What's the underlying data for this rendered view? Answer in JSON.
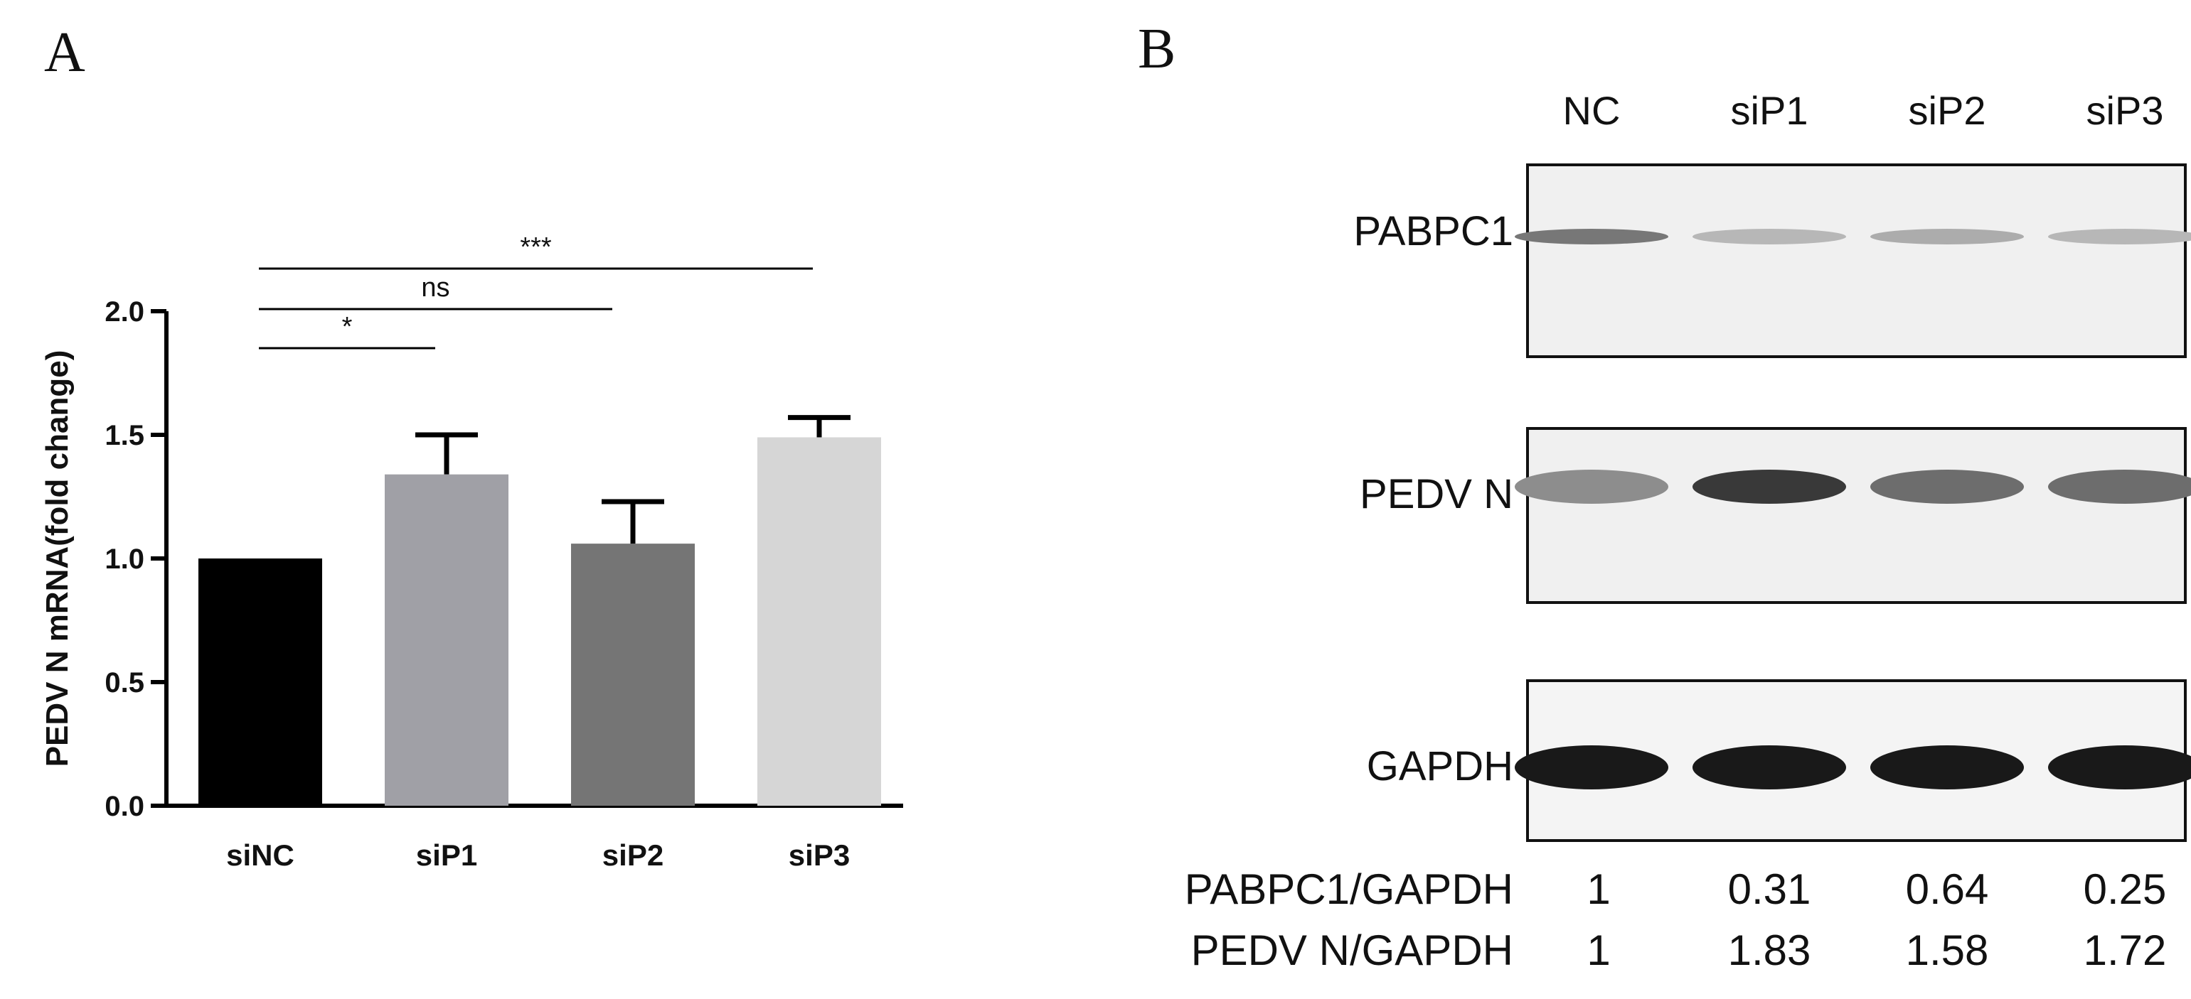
{
  "panels": {
    "A": {
      "letter": "A"
    },
    "B": {
      "letter": "B"
    }
  },
  "chart_data": {
    "type": "bar",
    "categories": [
      "siNC",
      "siP1",
      "siP2",
      "siP3"
    ],
    "values": [
      1.0,
      1.34,
      1.06,
      1.49
    ],
    "errors": [
      0.0,
      0.16,
      0.17,
      0.08
    ],
    "colors": [
      "#000000",
      "#a0a0a6",
      "#757575",
      "#d6d6d6"
    ],
    "ylabel": "PEDV N mRNA(fold change)",
    "ylim": [
      0,
      2.0
    ],
    "yticks": [
      "0.0",
      "0.5",
      "1.0",
      "1.5",
      "2.0"
    ],
    "ytick_values": [
      0.0,
      0.5,
      1.0,
      1.5,
      2.0
    ],
    "grid": false,
    "significance": [
      {
        "from": 0,
        "to": 1,
        "label": "*"
      },
      {
        "from": 0,
        "to": 2,
        "label": "ns"
      },
      {
        "from": 0,
        "to": 3,
        "label": "***"
      }
    ]
  },
  "blot": {
    "lanes": [
      "NC",
      "siP1",
      "siP2",
      "siP3"
    ],
    "bands": [
      {
        "label": "PABPC1",
        "intensity": [
          0.55,
          0.25,
          0.3,
          0.25
        ]
      },
      {
        "label": "PEDV N",
        "intensity": [
          0.45,
          0.85,
          0.6,
          0.6
        ]
      },
      {
        "label": "GAPDH",
        "intensity": [
          1.0,
          1.0,
          1.0,
          1.0
        ]
      }
    ],
    "quantification": [
      {
        "label": "PABPC1/GAPDH",
        "values": [
          "1",
          "0.31",
          "0.64",
          "0.25"
        ]
      },
      {
        "label": "PEDV N/GAPDH",
        "values": [
          "1",
          "1.83",
          "1.58",
          "1.72"
        ]
      }
    ]
  }
}
